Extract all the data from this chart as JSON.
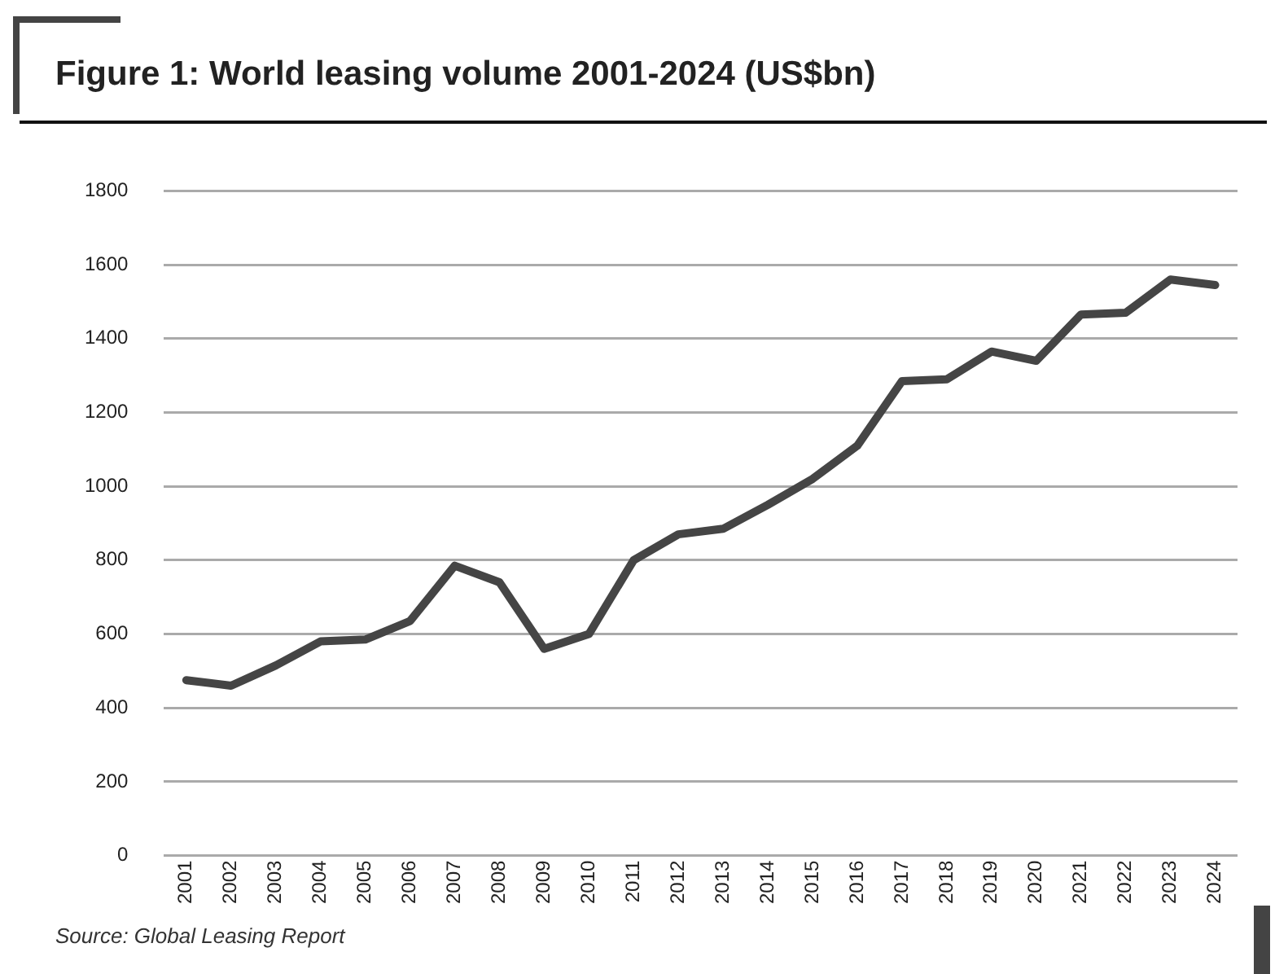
{
  "chart_data": {
    "type": "line",
    "title": "Figure 1: World leasing volume 2001-2024 (US$bn)",
    "categories": [
      "2001",
      "2002",
      "2003",
      "2004",
      "2005",
      "2006",
      "2007",
      "2008",
      "2009",
      "2010",
      "2011",
      "2012",
      "2013",
      "2014",
      "2015",
      "2016",
      "2017",
      "2018",
      "2019",
      "2020",
      "2021",
      "2022",
      "2023",
      "2024"
    ],
    "series": [
      {
        "color": "#454545",
        "values": [
          475,
          460,
          515,
          580,
          585,
          635,
          785,
          740,
          560,
          600,
          800,
          870,
          885,
          950,
          1020,
          1110,
          1285,
          1290,
          1365,
          1340,
          1465,
          1470,
          1560,
          1545
        ]
      }
    ],
    "ylim": [
      0,
      1800
    ],
    "yticks": [
      0,
      200,
      400,
      600,
      800,
      1000,
      1200,
      1400,
      1600,
      1800
    ],
    "grid": "y",
    "legend": false,
    "marker": "none",
    "line_style": "solid",
    "annotations": [
      "Source: Global Leasing Report"
    ]
  }
}
